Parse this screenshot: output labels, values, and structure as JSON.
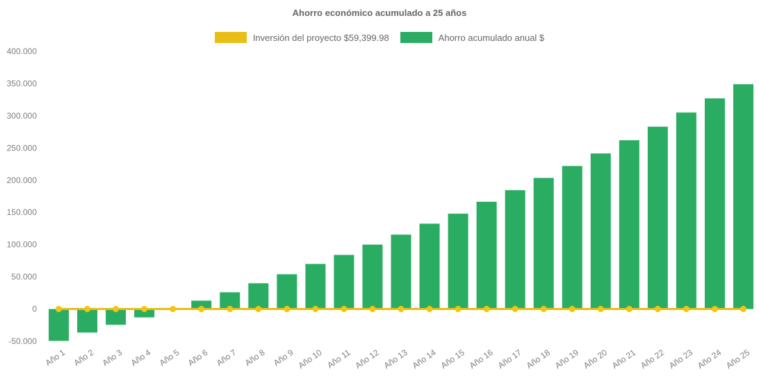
{
  "title": "Ahorro económico acumulado a 25 años",
  "legend": [
    {
      "label": "Inversión del proyecto $59,399.98",
      "color": "#e9bf15"
    },
    {
      "label": "Ahorro acumulado anual $",
      "color": "#2aad63"
    }
  ],
  "colors": {
    "bar_green": "#2aad63",
    "line_yellow": "#e9bd10",
    "marker_yellow": "#f2c511",
    "tick_text": "#7f7f7f",
    "title_text": "#666666",
    "background": "#ffffff"
  },
  "chart_data": {
    "type": "bar",
    "title": "Ahorro económico acumulado a 25 años",
    "categories": [
      "Año 1",
      "Año 2",
      "Año 3",
      "Año 4",
      "Año 5",
      "Año 6",
      "Año 7",
      "Año 8",
      "Año 9",
      "Año 10",
      "Año 11",
      "Año 12",
      "Año 13",
      "Año 14",
      "Año 15",
      "Año 16",
      "Año 17",
      "Año 18",
      "Año 19",
      "Año 20",
      "Año 21",
      "Año 22",
      "Año 23",
      "Año 24",
      "Año 25"
    ],
    "series": [
      {
        "name": "Inversión del proyecto $59,399.98",
        "type": "line",
        "color": "#e9bd10",
        "marker_color": "#f2c511",
        "values": [
          0,
          0,
          0,
          0,
          0,
          0,
          0,
          0,
          0,
          0,
          0,
          0,
          0,
          0,
          0,
          0,
          0,
          0,
          0,
          0,
          0,
          0,
          0,
          0,
          0
        ]
      },
      {
        "name": "Ahorro acumulado anual $",
        "type": "bar",
        "color": "#2aad63",
        "values": [
          -49500,
          -36500,
          -24500,
          -13000,
          0,
          13000,
          26000,
          40000,
          54000,
          70000,
          84000,
          100000,
          115500,
          132500,
          148000,
          166500,
          184500,
          203500,
          222000,
          241500,
          262000,
          283000,
          305000,
          327000,
          349000
        ]
      }
    ],
    "ylim": [
      -50000,
      400000
    ],
    "y_ticks": [
      {
        "value": 400000,
        "label": "400.000"
      },
      {
        "value": 350000,
        "label": "350.000"
      },
      {
        "value": 300000,
        "label": "300.000"
      },
      {
        "value": 250000,
        "label": "250.000"
      },
      {
        "value": 200000,
        "label": "200.000"
      },
      {
        "value": 150000,
        "label": "150.000"
      },
      {
        "value": 100000,
        "label": "100.000"
      },
      {
        "value": 50000,
        "label": "50.000"
      },
      {
        "value": 0,
        "label": "0"
      },
      {
        "value": -50000,
        "label": "-50.000"
      }
    ],
    "x_tick_rotation_deg": -35,
    "grid": false,
    "legend_position": "top"
  }
}
